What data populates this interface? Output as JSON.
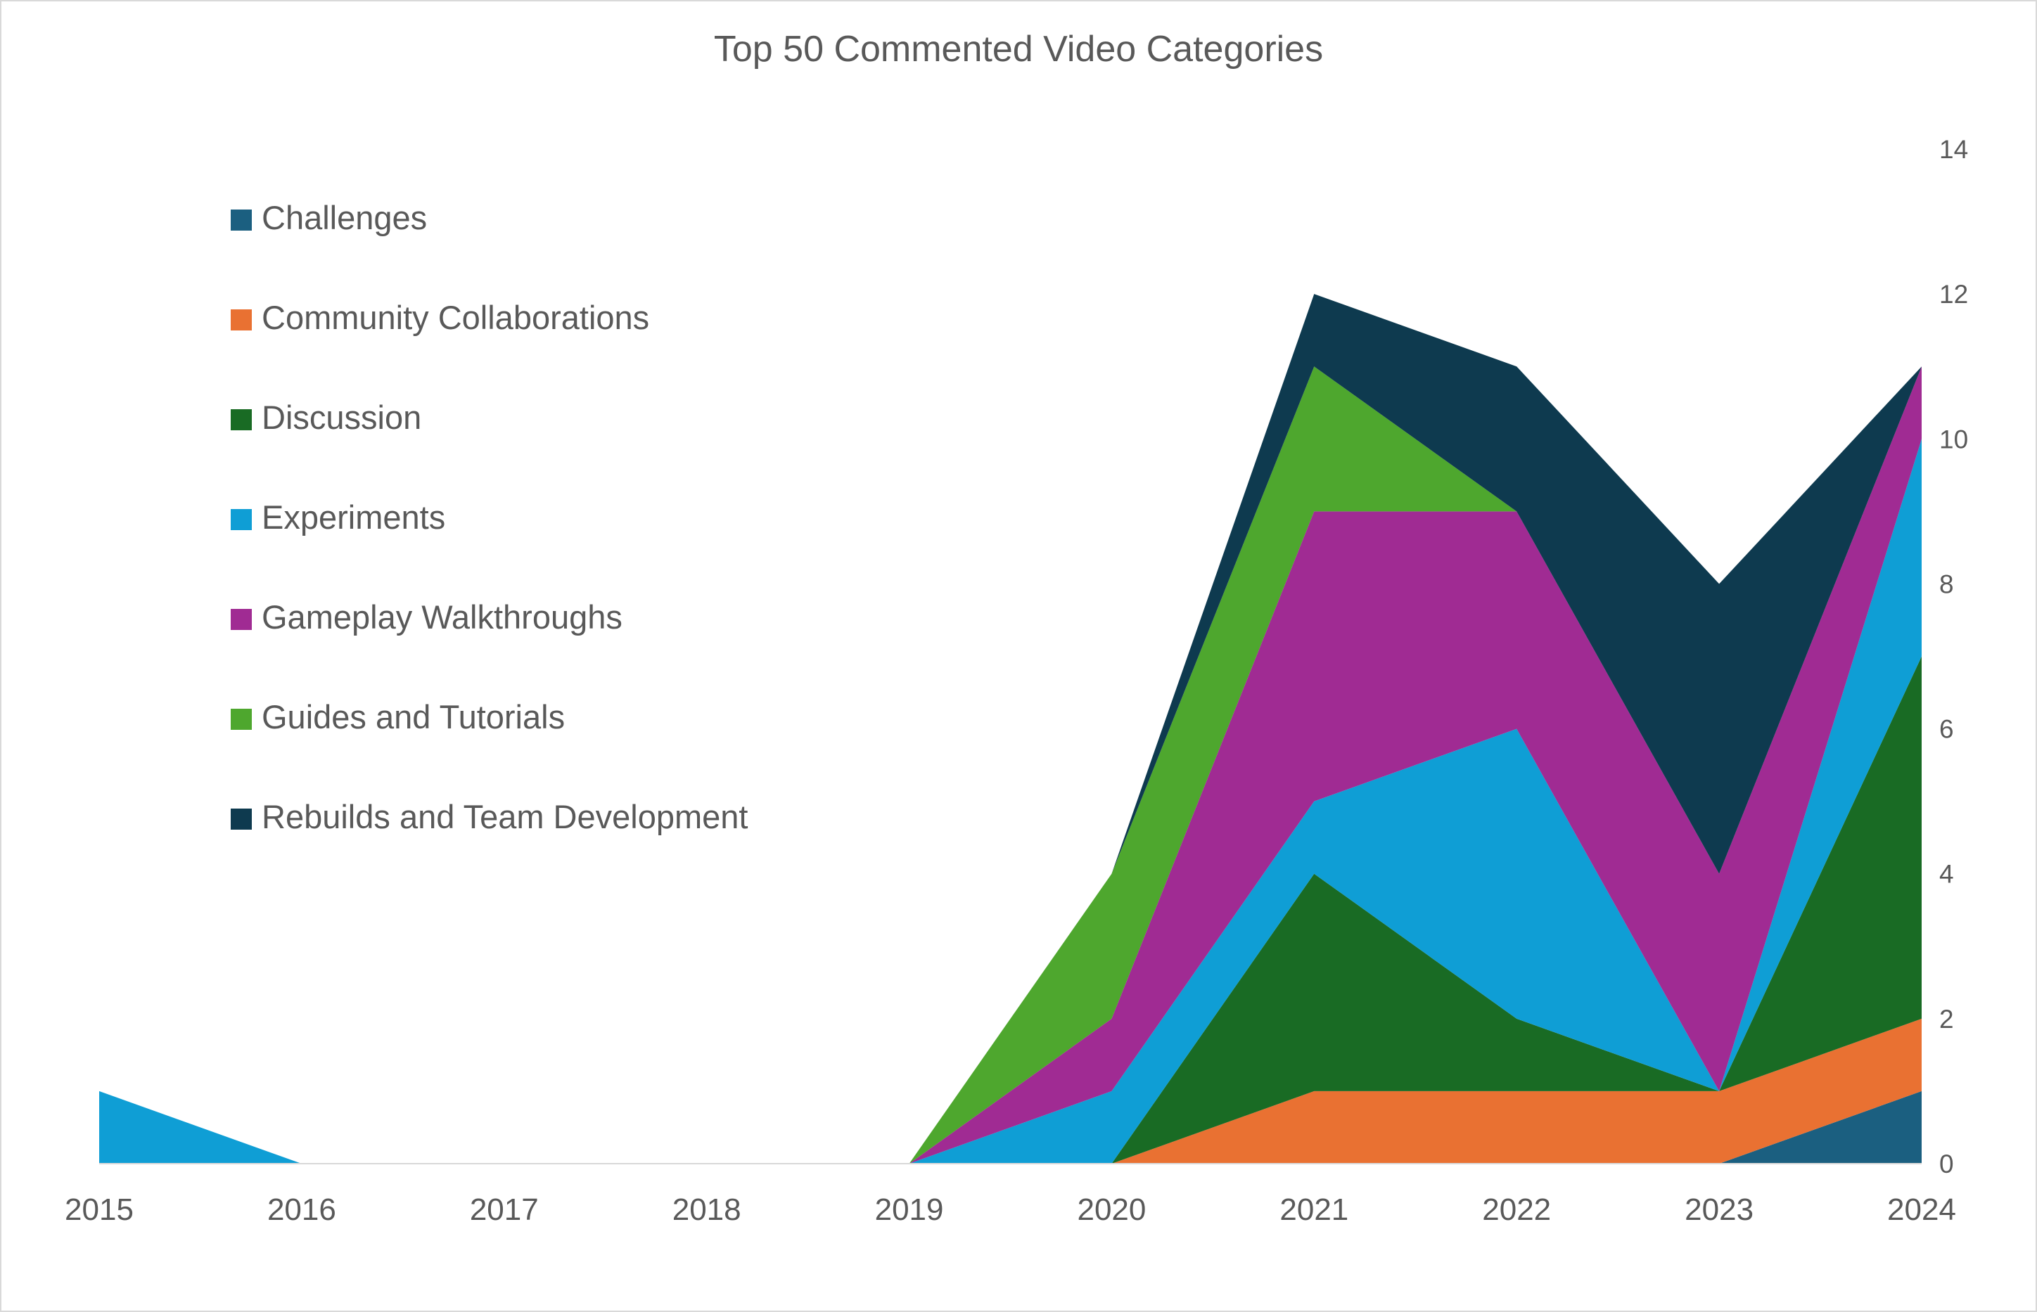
{
  "chart_data": {
    "type": "area",
    "stacked": true,
    "title": "Top 50 Commented Video Categories",
    "x": [
      "2015",
      "2016",
      "2017",
      "2018",
      "2019",
      "2020",
      "2021",
      "2022",
      "2023",
      "2024"
    ],
    "ylim": [
      0,
      14
    ],
    "yticks": [
      "0",
      "2",
      "4",
      "6",
      "8",
      "10",
      "12",
      "14"
    ],
    "y_axis_side": "right",
    "legend_position": "top-left",
    "grid": false,
    "series": [
      {
        "name": "Challenges",
        "color": "#1b5f80",
        "values": [
          0,
          0,
          0,
          0,
          0,
          0,
          0,
          0,
          0,
          1
        ]
      },
      {
        "name": "Community Collaborations",
        "color": "#e97132",
        "values": [
          0,
          0,
          0,
          0,
          0,
          0,
          1,
          1,
          1,
          1
        ]
      },
      {
        "name": "Discussion",
        "color": "#196b24",
        "values": [
          0,
          0,
          0,
          0,
          0,
          0,
          3,
          1,
          0,
          5
        ]
      },
      {
        "name": "Experiments",
        "color": "#0f9ed5",
        "values": [
          1,
          0,
          0,
          0,
          0,
          1,
          1,
          4,
          0,
          3
        ]
      },
      {
        "name": "Gameplay Walkthroughs",
        "color": "#a02b93",
        "values": [
          0,
          0,
          0,
          0,
          0,
          1,
          4,
          3,
          3,
          1
        ]
      },
      {
        "name": "Guides and Tutorials",
        "color": "#4ea72e",
        "values": [
          0,
          0,
          0,
          0,
          0,
          2,
          2,
          0,
          0,
          0
        ]
      },
      {
        "name": "Rebuilds and Team Development",
        "color": "#0e3a4f",
        "values": [
          0,
          0,
          0,
          0,
          0,
          0,
          1,
          2,
          4,
          0
        ]
      }
    ]
  }
}
